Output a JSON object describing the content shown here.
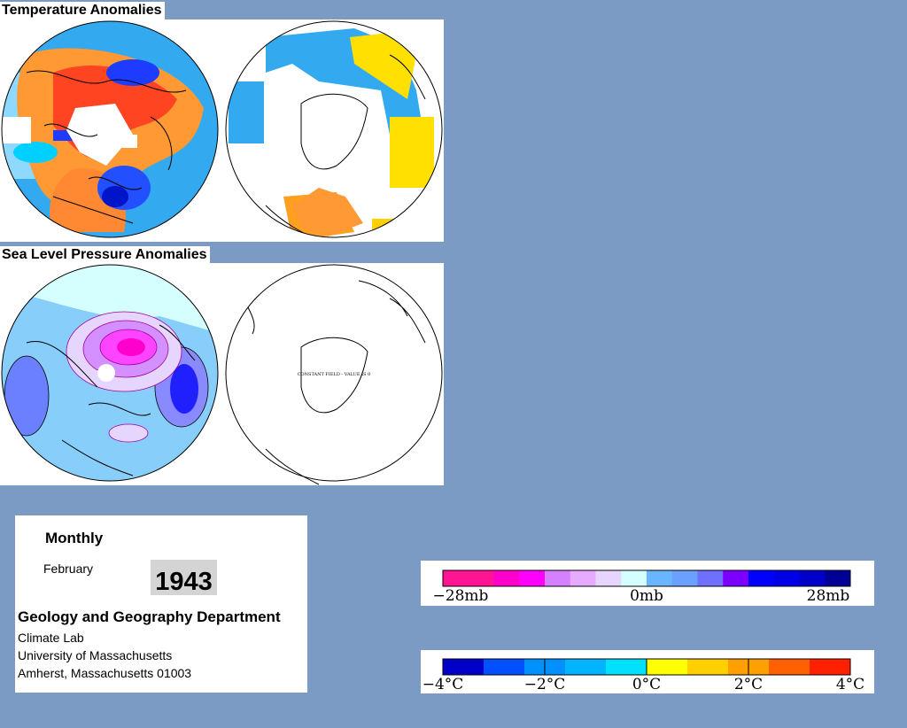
{
  "titles": {
    "temperature": "Temperature Anomalies",
    "pressure": "Sea Level Pressure Anomalies"
  },
  "maps": {
    "constant_field_label": "CONSTANT FIELD - VALUE IS 0"
  },
  "info": {
    "frequency": "Monthly",
    "month": "February",
    "year": "1943",
    "department": "Geology and Geography Department",
    "lab": "Climate Lab",
    "university": "University of Massachusetts",
    "address": "Amherst, Massachusetts 01003"
  },
  "pressure_legend": {
    "labels": [
      "−28mb",
      "0mb",
      "28mb"
    ],
    "colors": [
      "#ff1493",
      "#ff1493",
      "#ff00cc",
      "#ff00ff",
      "#d580ff",
      "#e6aaff",
      "#e6d5ff",
      "#d5ffff",
      "#6ab5ff",
      "#6aa0ff",
      "#7070ff",
      "#7b00ff",
      "#0000ff",
      "#0000e6",
      "#0000c8",
      "#000096"
    ]
  },
  "temperature_legend": {
    "labels": [
      "−4°C",
      "−2°C",
      "0°C",
      "2°C",
      "4°C"
    ],
    "colors": [
      "#0000c8",
      "#0050ff",
      "#0090ff",
      "#00b4ff",
      "#00e0ff",
      "#ffff00",
      "#ffd000",
      "#ffa000",
      "#ff6000",
      "#ff2000"
    ]
  }
}
